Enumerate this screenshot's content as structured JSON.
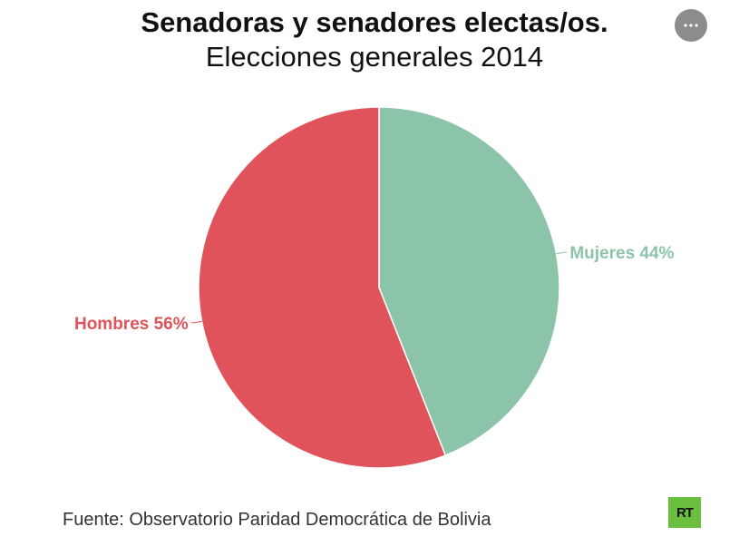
{
  "header": {
    "title_line1": "Senadoras y senadores electas/os.",
    "title_line2": "Elecciones generales 2014"
  },
  "menu": {
    "icon": "more-horizontal-icon"
  },
  "chart_data": {
    "type": "pie",
    "title": "Senadoras y senadores electas/os. Elecciones generales 2014",
    "slices": [
      {
        "label": "Mujeres",
        "value": 44,
        "display": "Mujeres 44%",
        "color": "#8cc4aa"
      },
      {
        "label": "Hombres",
        "value": 56,
        "display": "Hombres 56%",
        "color": "#e0535a"
      }
    ],
    "label_colors": {
      "Mujeres": "#8cc4aa",
      "Hombres": "#e0535a"
    }
  },
  "footer": {
    "source": "Fuente: Observatorio Paridad Democrática de Bolivia",
    "logo_text": "RT",
    "logo_color": "#6abf3f"
  }
}
